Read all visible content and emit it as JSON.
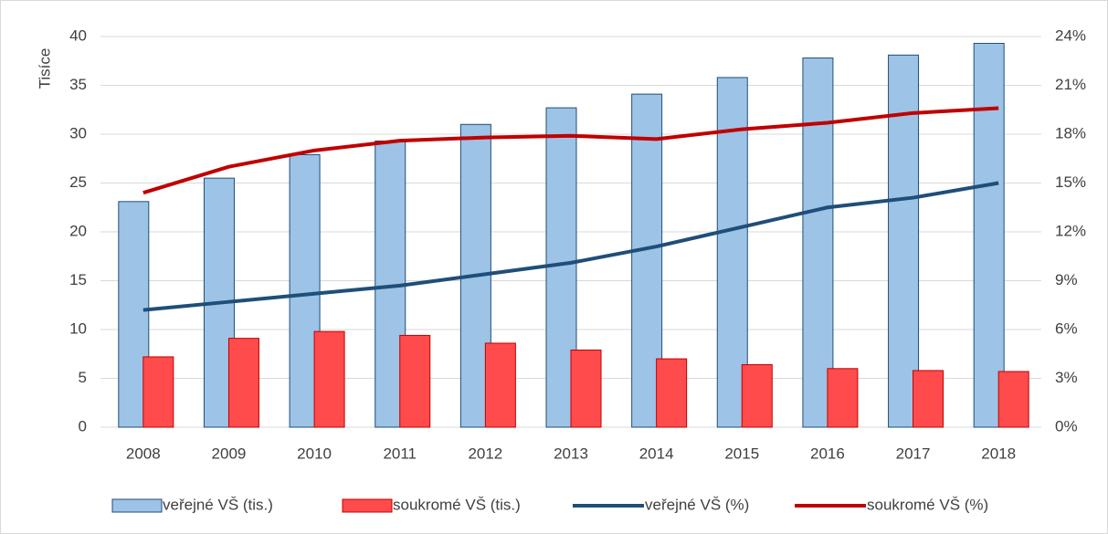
{
  "chart_data": {
    "type": "bar_line",
    "y_axis_label": "Tisíce",
    "categories": [
      "2008",
      "2009",
      "2010",
      "2011",
      "2012",
      "2013",
      "2014",
      "2015",
      "2016",
      "2017",
      "2018"
    ],
    "series": [
      {
        "name": "veřejné VŠ (tis.)",
        "type": "bar",
        "color": "#9dc3e6",
        "edge": "#1f4e79",
        "axis": "y",
        "values": [
          23.1,
          25.5,
          27.9,
          29.3,
          31.0,
          32.7,
          34.1,
          35.8,
          37.8,
          38.1,
          39.3
        ]
      },
      {
        "name": "soukromé VŠ (tis.)",
        "type": "bar",
        "color": "#ff4b4b",
        "edge": "#c00000",
        "axis": "y",
        "values": [
          7.2,
          9.1,
          9.8,
          9.4,
          8.6,
          7.9,
          7.0,
          6.4,
          6.0,
          5.8,
          5.7
        ]
      },
      {
        "name": "veřejné VŠ (%)",
        "type": "line",
        "color": "#1f4e79",
        "axis": "y2",
        "values": [
          7.2,
          7.7,
          8.2,
          8.7,
          9.4,
          10.1,
          11.1,
          12.3,
          13.5,
          14.1,
          15.0
        ]
      },
      {
        "name": "soukromé VŠ (%)",
        "type": "line",
        "color": "#c00000",
        "axis": "y2",
        "values": [
          14.4,
          16.0,
          17.0,
          17.6,
          17.8,
          17.9,
          17.7,
          18.3,
          18.7,
          19.3,
          19.6
        ]
      }
    ],
    "ylim": [
      0,
      40
    ],
    "yticks": [
      0,
      5,
      10,
      15,
      20,
      25,
      30,
      35,
      40
    ],
    "y2lim": [
      0,
      24
    ],
    "y2ticks": [
      {
        "value": 0,
        "label": "0%"
      },
      {
        "value": 3,
        "label": "3%"
      },
      {
        "value": 6,
        "label": "6%"
      },
      {
        "value": 9,
        "label": "9%"
      },
      {
        "value": 12,
        "label": "12%"
      },
      {
        "value": 15,
        "label": "15%"
      },
      {
        "value": 18,
        "label": "18%"
      },
      {
        "value": 21,
        "label": "21%"
      },
      {
        "value": 24,
        "label": "24%"
      }
    ],
    "grid": true,
    "legend": "bottom"
  }
}
